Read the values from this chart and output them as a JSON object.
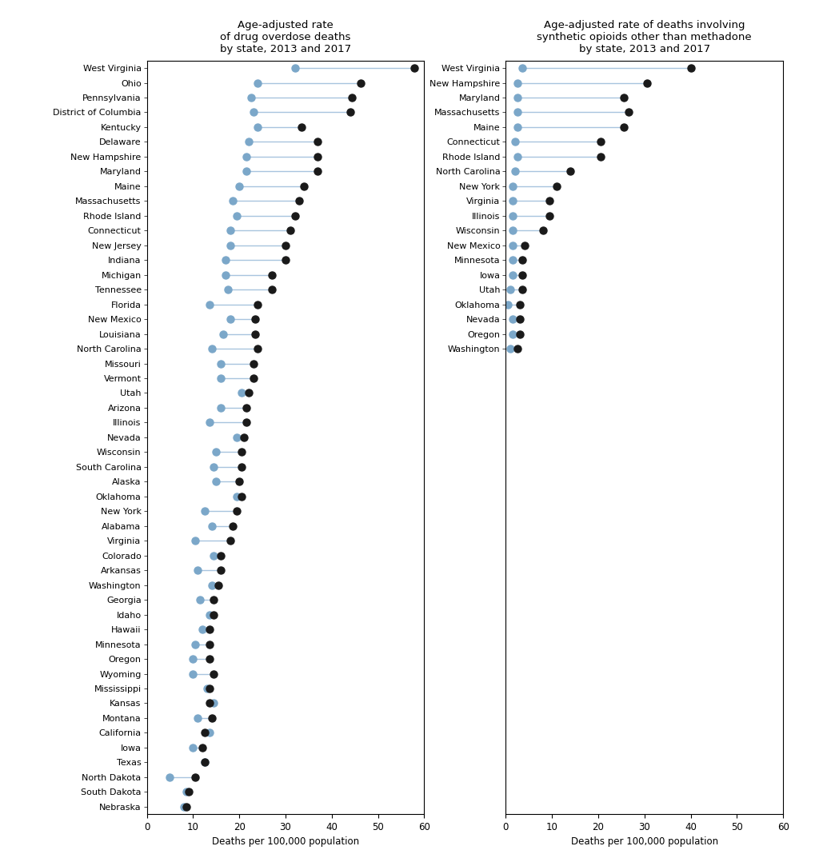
{
  "left_title": "Age-adjusted rate\nof drug overdose deaths\nby state, 2013 and 2017",
  "right_title": "Age-adjusted rate of deaths involving\nsynthetic opioids other than methadone\nby state, 2013 and 2017",
  "xlabel": "Deaths per 100,000 population",
  "xlim": [
    0,
    60
  ],
  "xticks": [
    0,
    10,
    20,
    30,
    40,
    50,
    60
  ],
  "dot_color_2013": "#7ba7c9",
  "dot_color_2017": "#1a1a1a",
  "line_color": "#a8c4de",
  "left_states": [
    "West Virginia",
    "Ohio",
    "Pennsylvania",
    "District of Columbia",
    "Kentucky",
    "Delaware",
    "New Hampshire",
    "Maryland",
    "Maine",
    "Massachusetts",
    "Rhode Island",
    "Connecticut",
    "New Jersey",
    "Indiana",
    "Michigan",
    "Tennessee",
    "Florida",
    "New Mexico",
    "Louisiana",
    "North Carolina",
    "Missouri",
    "Vermont",
    "Utah",
    "Arizona",
    "Illinois",
    "Nevada",
    "Wisconsin",
    "South Carolina",
    "Alaska",
    "Oklahoma",
    "New York",
    "Alabama",
    "Virginia",
    "Colorado",
    "Arkansas",
    "Washington",
    "Georgia",
    "Idaho",
    "Hawaii",
    "Minnesota",
    "Oregon",
    "Wyoming",
    "Mississippi",
    "Kansas",
    "Montana",
    "California",
    "Iowa",
    "Texas",
    "North Dakota",
    "South Dakota",
    "Nebraska"
  ],
  "left_val_2013": [
    32.0,
    24.0,
    22.5,
    23.0,
    24.0,
    22.0,
    21.5,
    21.5,
    20.0,
    18.5,
    19.5,
    18.0,
    18.0,
    17.0,
    17.0,
    17.5,
    13.5,
    18.0,
    16.5,
    14.0,
    16.0,
    16.0,
    20.5,
    16.0,
    13.5,
    19.5,
    15.0,
    14.5,
    15.0,
    19.5,
    12.5,
    14.0,
    10.5,
    14.5,
    11.0,
    14.0,
    11.5,
    13.5,
    12.0,
    10.5,
    10.0,
    10.0,
    13.0,
    14.5,
    11.0,
    13.5,
    10.0,
    12.5,
    5.0,
    8.5,
    8.0
  ],
  "left_val_2017": [
    57.8,
    46.3,
    44.3,
    44.0,
    33.5,
    37.0,
    37.0,
    37.0,
    34.0,
    33.0,
    32.0,
    31.0,
    30.0,
    30.0,
    27.0,
    27.0,
    24.0,
    23.5,
    23.5,
    24.0,
    23.0,
    23.0,
    22.0,
    21.5,
    21.5,
    21.0,
    20.5,
    20.5,
    20.0,
    20.5,
    19.5,
    18.5,
    18.0,
    16.0,
    16.0,
    15.5,
    14.5,
    14.5,
    13.5,
    13.5,
    13.5,
    14.5,
    13.5,
    13.5,
    14.0,
    12.5,
    12.0,
    12.5,
    10.5,
    9.0,
    8.5
  ],
  "right_states": [
    "West Virginia",
    "New Hampshire",
    "Maryland",
    "Massachusetts",
    "Maine",
    "Connecticut",
    "Rhode Island",
    "North Carolina",
    "New York",
    "Virginia",
    "Illinois",
    "Wisconsin",
    "New Mexico",
    "Minnesota",
    "Iowa",
    "Utah",
    "Oklahoma",
    "Nevada",
    "Oregon",
    "Washington"
  ],
  "right_val_2013": [
    3.5,
    2.5,
    2.5,
    2.5,
    2.5,
    2.0,
    2.5,
    2.0,
    1.5,
    1.5,
    1.5,
    1.5,
    1.5,
    1.5,
    1.5,
    1.0,
    0.5,
    1.5,
    1.5,
    1.0
  ],
  "right_val_2017": [
    40.0,
    30.5,
    25.5,
    26.5,
    25.5,
    20.5,
    20.5,
    14.0,
    11.0,
    9.5,
    9.5,
    8.0,
    4.0,
    3.5,
    3.5,
    3.5,
    3.0,
    3.0,
    3.0,
    2.5
  ]
}
